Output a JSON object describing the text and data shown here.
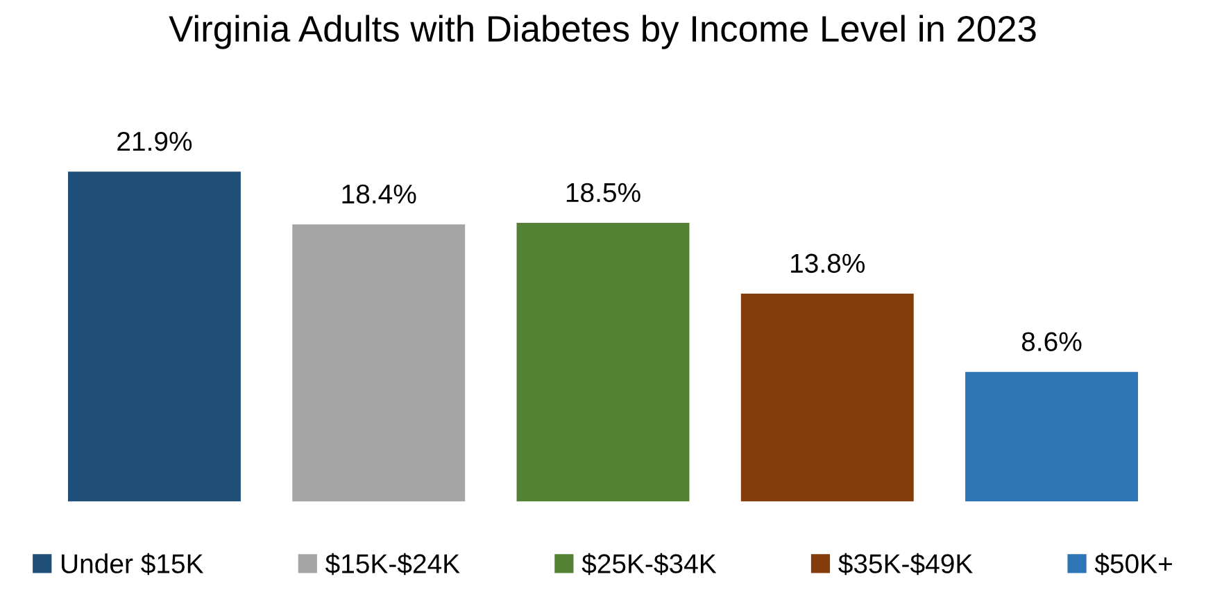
{
  "chart_data": {
    "type": "bar",
    "title": "Virginia Adults with Diabetes by Income Level in 2023",
    "categories": [
      null
    ],
    "series": [
      {
        "name": "Under $15K",
        "color": "#1f4e79",
        "values": [
          21.9
        ],
        "value_labels": [
          "21.9%"
        ]
      },
      {
        "name": "$15K-$24K",
        "color": "#a5a5a5",
        "values": [
          18.4
        ],
        "value_labels": [
          "18.4%"
        ]
      },
      {
        "name": "$25K-$34K",
        "color": "#548235",
        "values": [
          18.5
        ],
        "value_labels": [
          "18.5%"
        ]
      },
      {
        "name": "$35K-$49K",
        "color": "#843c0c",
        "values": [
          13.8
        ],
        "value_labels": [
          "13.8%"
        ]
      },
      {
        "name": "$50K+",
        "color": "#2e75b6",
        "values": [
          8.6
        ],
        "value_labels": [
          "8.6%"
        ]
      }
    ],
    "legend": "bottom"
  }
}
